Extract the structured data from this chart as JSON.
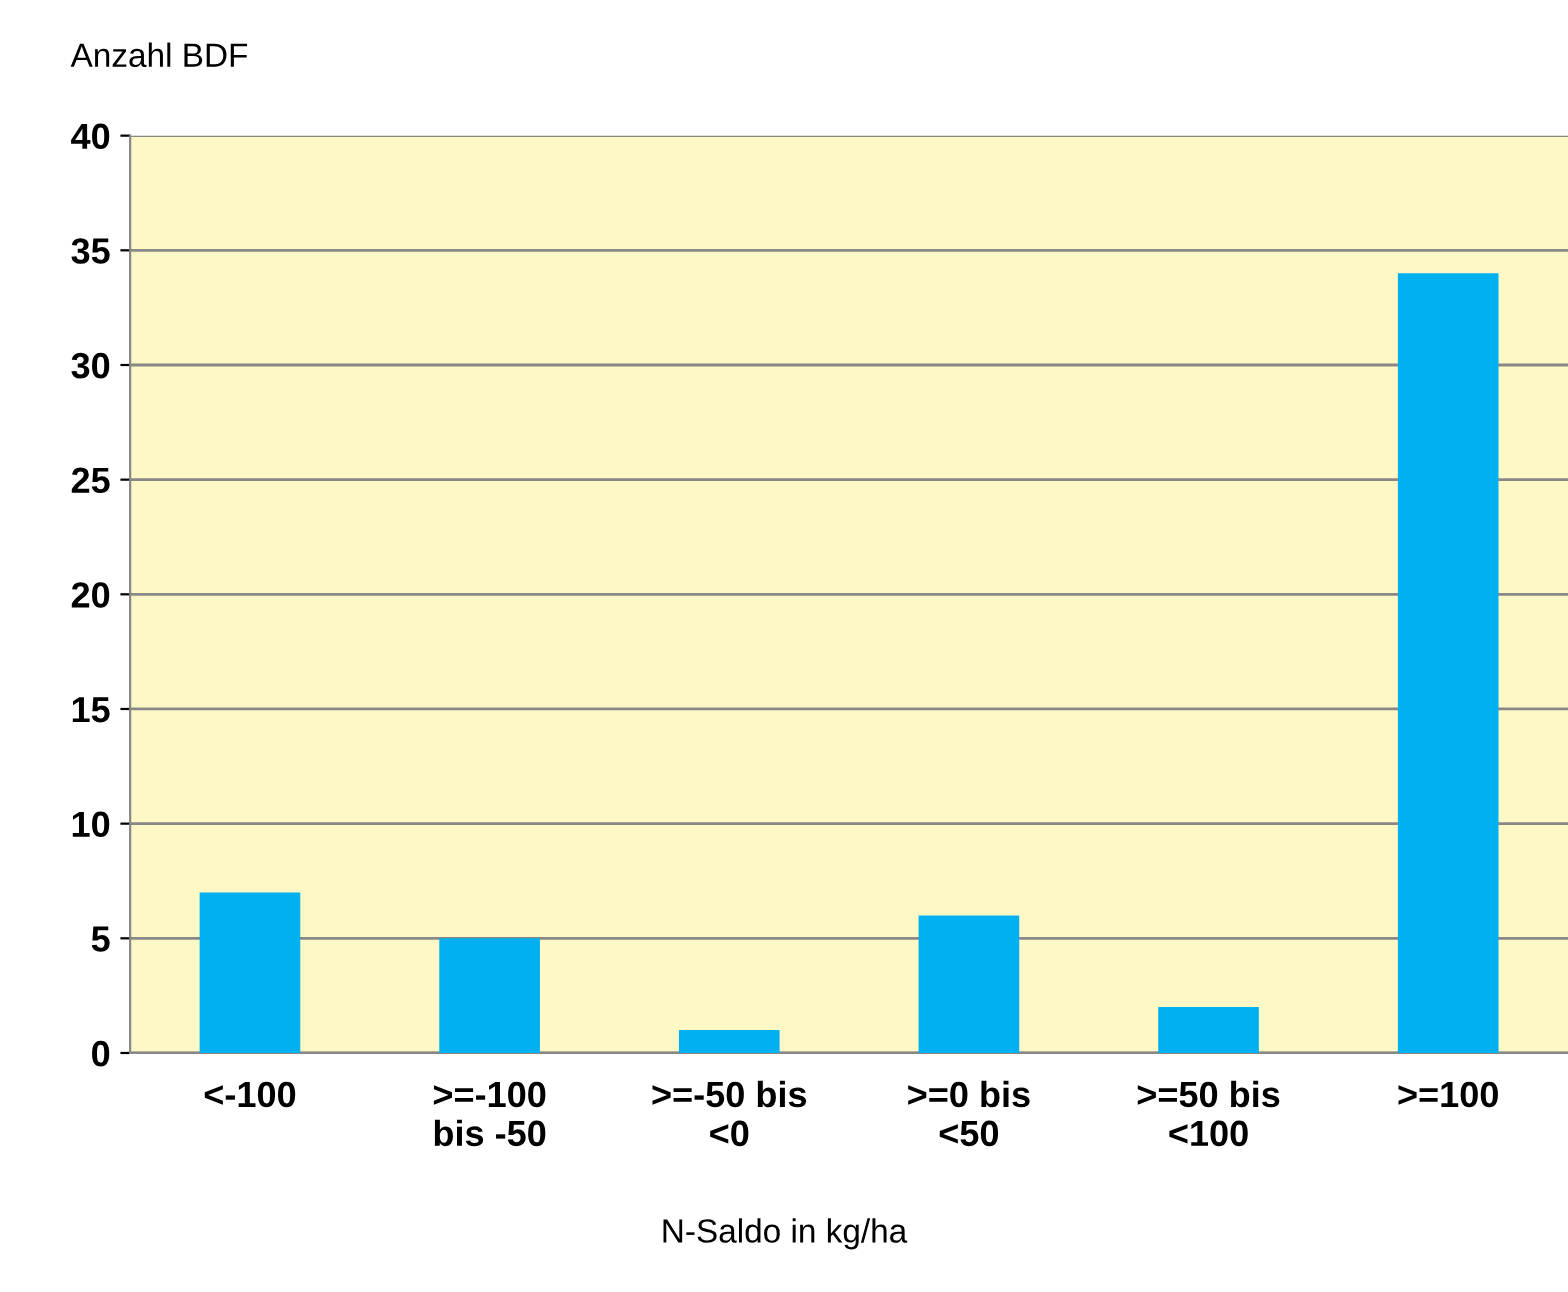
{
  "chart_data": {
    "type": "bar",
    "ylabel": "Anzahl BDF",
    "xlabel": "N-Saldo in kg/ha",
    "categories": [
      "<-100",
      ">=-100\nbis -50",
      ">=-50 bis\n<0",
      ">=0 bis\n<50",
      ">=50 bis\n<100",
      ">=100"
    ],
    "values": [
      7,
      5,
      1,
      6,
      2,
      34
    ],
    "color": "#00b0f0",
    "ylim": [
      0,
      40
    ],
    "yticks": [
      0,
      5,
      10,
      15,
      20,
      25,
      30,
      35,
      40
    ],
    "grid": "y"
  }
}
